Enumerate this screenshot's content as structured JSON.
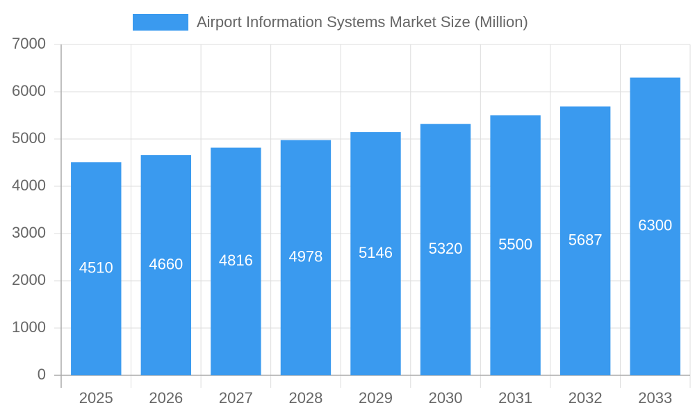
{
  "chart_data": {
    "type": "bar",
    "categories": [
      "2025",
      "2026",
      "2027",
      "2028",
      "2029",
      "2030",
      "2031",
      "2032",
      "2033"
    ],
    "series": [
      {
        "name": "Airport Information Systems Market Size (Million)",
        "color": "#3a9aef",
        "values": [
          4510,
          4660,
          4816,
          4978,
          5146,
          5320,
          5500,
          5687,
          6300
        ]
      }
    ],
    "ylim": [
      0,
      7000
    ],
    "yticks": [
      0,
      1000,
      2000,
      3000,
      4000,
      5000,
      6000,
      7000
    ],
    "grid": true
  }
}
